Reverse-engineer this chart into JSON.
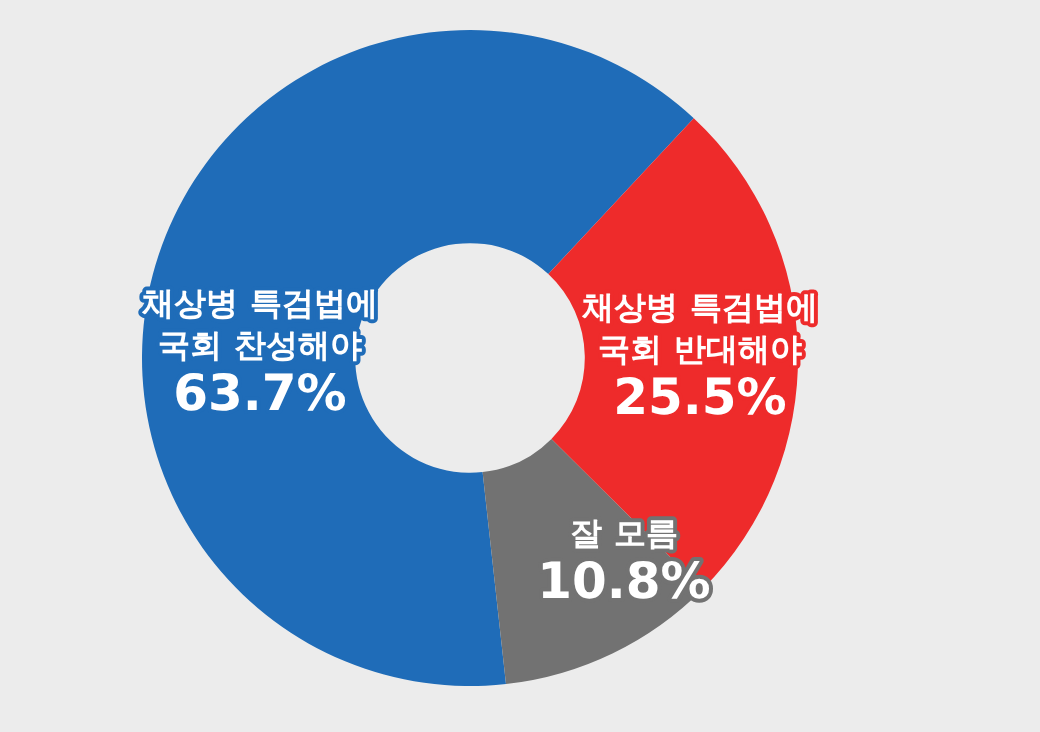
{
  "chart_data": {
    "type": "donut",
    "categories": [
      "채상병 특검법에 국회 찬성해야",
      "채상병 특검법에 국회 반대해야",
      "잘 모름"
    ],
    "values": [
      63.7,
      25.5,
      10.8
    ],
    "value_labels": [
      "63.7%",
      "25.5%",
      "10.8%"
    ],
    "colors": [
      "#1f6cb8",
      "#ee2b2b",
      "#727272"
    ]
  }
}
